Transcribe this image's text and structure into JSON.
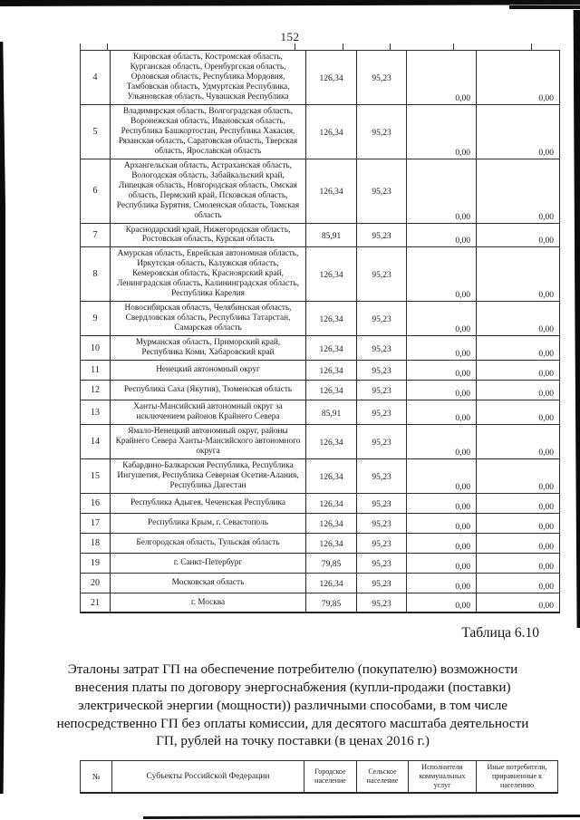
{
  "page": {
    "number": "152"
  },
  "colors": {
    "paper": "#ffffff",
    "ink": "#1e1e1e",
    "scan_bar": "#0d0d0d"
  },
  "main_table": {
    "rows": [
      {
        "num": "4",
        "regions": "Кировская область, Костромская область, Курганская область, Оренбургская область, Орловская область, Республика Мордовия, Тамбовская область, Удмуртская Республика, Ульяновская область, Чувашская Республика",
        "urban": "126,34",
        "rural": "95,23",
        "utility": "0,00",
        "other": "0,00"
      },
      {
        "num": "5",
        "regions": "Владимирская область, Волгоградская область, Воронежская область, Ивановская область, Республика Башкортостан, Республика Хакасия, Рязанская область, Саратовская область, Тверская область, Ярославская область",
        "urban": "126,34",
        "rural": "95,23",
        "utility": "0,00",
        "other": "0,00"
      },
      {
        "num": "6",
        "regions": "Архангельская область, Астраханская область, Вологодская область, Забайкальский край, Липецкая область, Новгородская область, Омская область, Пермский край, Псковская область, Республика Бурятия, Смоленская область, Томская область",
        "urban": "126,34",
        "rural": "95,23",
        "utility": "0,00",
        "other": "0,00"
      },
      {
        "num": "7",
        "regions": "Краснодарский край, Нижегородская область, Ростовская область, Курская область",
        "urban": "85,91",
        "rural": "95,23",
        "utility": "0,00",
        "other": "0,00"
      },
      {
        "num": "8",
        "regions": "Амурская область, Еврейская автономная область, Иркутская область, Калужская область, Кемеровская область, Красноярский край, Ленинградская область, Калининградская область, Республика Карелия",
        "urban": "126,34",
        "rural": "95,23",
        "utility": "0,00",
        "other": "0,00"
      },
      {
        "num": "9",
        "regions": "Новосибирская область, Челябинская область, Свердловская область, Республика Татарстан, Самарская область",
        "urban": "126,34",
        "rural": "95,23",
        "utility": "0,00",
        "other": "0,00"
      },
      {
        "num": "10",
        "regions": "Мурманская область, Приморский край, Республика Коми, Хабаровский край",
        "urban": "126,34",
        "rural": "95,23",
        "utility": "0,00",
        "other": "0,00"
      },
      {
        "num": "11",
        "regions": "Ненецкий автономный округ",
        "urban": "126,34",
        "rural": "95,23",
        "utility": "0,00",
        "other": "0,00"
      },
      {
        "num": "12",
        "regions": "Республика Саха (Якутия), Тюменская область",
        "urban": "126,34",
        "rural": "95,23",
        "utility": "0,00",
        "other": "0,00"
      },
      {
        "num": "13",
        "regions": "Ханты-Мансийский автономный округ за исключением районов Крайнего Севера",
        "urban": "85,91",
        "rural": "95,23",
        "utility": "0,00",
        "other": "0,00"
      },
      {
        "num": "14",
        "regions": "Ямало-Ненецкий автономный округ, районы Крайнего Севера Ханты-Мансийского автономного округа",
        "urban": "126,34",
        "rural": "95,23",
        "utility": "0,00",
        "other": "0,00"
      },
      {
        "num": "15",
        "regions": "Кабардино-Балкарская Республика, Республика Ингушетия, Республика Северная Осетия-Алания, Республика Дагестан",
        "urban": "126,34",
        "rural": "95,23",
        "utility": "0,00",
        "other": "0,00"
      },
      {
        "num": "16",
        "regions": "Республика Адыгея, Чеченская Республика",
        "urban": "126,34",
        "rural": "95,23",
        "utility": "0,00",
        "other": "0,00"
      },
      {
        "num": "17",
        "regions": "Республика Крым, г. Севастополь",
        "urban": "126,34",
        "rural": "95,23",
        "utility": "0,00",
        "other": "0,00"
      },
      {
        "num": "18",
        "regions": "Белгородская область, Тульская область",
        "urban": "126,34",
        "rural": "95,23",
        "utility": "0,00",
        "other": "0,00"
      },
      {
        "num": "19",
        "regions": "г. Санкт-Петербург",
        "urban": "79,85",
        "rural": "95,23",
        "utility": "0,00",
        "other": "0,00"
      },
      {
        "num": "20",
        "regions": "Московская область",
        "urban": "126,34",
        "rural": "95,23",
        "utility": "0,00",
        "other": "0,00"
      },
      {
        "num": "21",
        "regions": "г. Москва",
        "urban": "79,85",
        "rural": "95,23",
        "utility": "0,00",
        "other": "0,00"
      }
    ]
  },
  "caption": "Таблица 6.10",
  "section_title": "Эталоны затрат ГП на обеспечение потребителю (покупателю) возможности внесения платы по договору энергоснабжения (купли-продажи (поставки) электрической энергии (мощности)) различными способами, в том числе непосредственно ГП без оплаты комиссии, для десятого масштаба деятельности ГП, рублей на точку поставки (в ценах 2016 г.)",
  "bottom_table": {
    "headers": {
      "num": "№",
      "regions": "Субъекты Российской Федерации",
      "urban": "Городское население",
      "rural": "Сельское население",
      "utility": "Исполнители коммунальных услуг",
      "other": "Иные потребители, приравненные к населению"
    }
  }
}
